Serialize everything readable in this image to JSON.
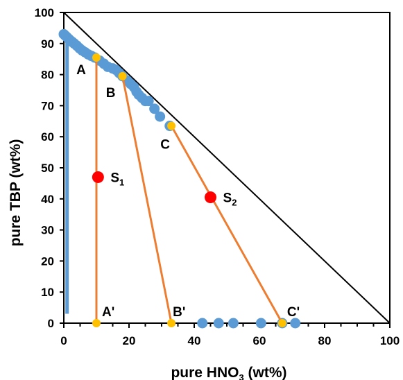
{
  "chart_data": {
    "type": "scatter",
    "xlabel_main": "pure HNO",
    "xlabel_sub": "3",
    "xlabel_tail": " (wt%)",
    "ylabel": "pure TBP (wt%)",
    "xlim": [
      0,
      100
    ],
    "ylim": [
      0,
      100
    ],
    "xticks": [
      0,
      20,
      40,
      60,
      80,
      100
    ],
    "yticks": [
      0,
      10,
      20,
      30,
      40,
      50,
      60,
      70,
      80,
      90,
      100
    ],
    "grid": false,
    "colors": {
      "binodal": "#5b9bd5",
      "tie_line": "#ed7d31",
      "tie_end": "#ffc000",
      "mixture": "#ff0000",
      "diagonal": "#000000"
    },
    "binodal_top": [
      [
        0,
        93
      ],
      [
        0.5,
        92.5
      ],
      [
        1,
        92
      ],
      [
        1.5,
        91.5
      ],
      [
        2,
        91
      ],
      [
        2.6,
        90.5
      ],
      [
        3.2,
        90
      ],
      [
        4,
        89.3
      ],
      [
        4.8,
        88.5
      ],
      [
        5.6,
        87.8
      ],
      [
        6.5,
        87.2
      ],
      [
        7.5,
        86.5
      ],
      [
        8.5,
        86
      ],
      [
        9.5,
        85.5
      ],
      [
        11,
        84.5
      ],
      [
        12.3,
        83.5
      ],
      [
        13.5,
        82.5
      ],
      [
        15,
        82
      ],
      [
        16,
        81.5
      ],
      [
        17,
        80.5
      ],
      [
        18,
        79.5
      ],
      [
        19.5,
        78
      ],
      [
        20.5,
        77
      ],
      [
        21.5,
        76
      ],
      [
        22.3,
        74.5
      ],
      [
        23,
        73.5
      ],
      [
        24,
        72.5
      ],
      [
        25,
        71.5
      ],
      [
        26,
        71.5
      ],
      [
        27.8,
        69
      ],
      [
        29.5,
        66.5
      ],
      [
        32.5,
        63.5
      ]
    ],
    "binodal_left_x": 1,
    "binodal_left_y": [
      3,
      93
    ],
    "binodal_bottom": [
      [
        42.5,
        0
      ],
      [
        47.5,
        0
      ],
      [
        52,
        0
      ],
      [
        60.5,
        0
      ],
      [
        67,
        0
      ],
      [
        71,
        0
      ]
    ],
    "tie_lines": [
      {
        "label": "A",
        "prime_label": "A'",
        "top": [
          10,
          85.5
        ],
        "bottom": [
          10,
          0
        ]
      },
      {
        "label": "B",
        "prime_label": "B'",
        "top": [
          18,
          79.5
        ],
        "bottom": [
          33,
          0
        ]
      },
      {
        "label": "C",
        "prime_label": "C'",
        "top": [
          33,
          63.5
        ],
        "bottom": [
          67,
          0
        ]
      }
    ],
    "mixtures": [
      {
        "main": "S",
        "sub": "1",
        "x": 10.5,
        "y": 47
      },
      {
        "main": "S",
        "sub": "2",
        "x": 45,
        "y": 40.5
      }
    ]
  }
}
